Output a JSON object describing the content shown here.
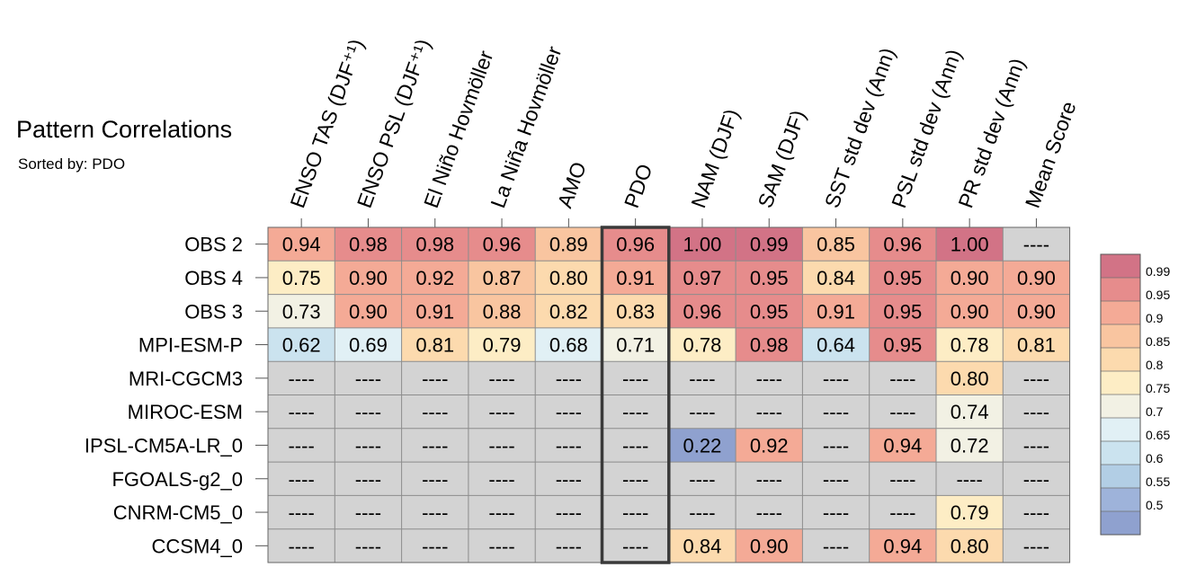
{
  "chart_data": {
    "type": "heatmap",
    "title": "Pattern Correlations",
    "subtitle": "Sorted by: PDO",
    "columns": [
      "ENSO TAS (DJF⁺¹)",
      "ENSO PSL (DJF⁺¹)",
      "El Niño Hovmöller",
      "La Niña Hovmöller",
      "AMO",
      "PDO",
      "NAM (DJF)",
      "SAM (DJF)",
      "SST std dev (Ann)",
      "PSL std dev (Ann)",
      "PR std dev (Ann)",
      "Mean Score"
    ],
    "highlighted_column": "PDO",
    "rows": [
      "OBS 2",
      "OBS 4",
      "OBS 3",
      "MPI-ESM-P",
      "MRI-CGCM3",
      "MIROC-ESM",
      "IPSL-CM5A-LR_0",
      "FGOALS-g2_0",
      "CNRM-CM5_0",
      "CCSM4_0"
    ],
    "values": [
      [
        0.94,
        0.98,
        0.98,
        0.96,
        0.89,
        0.96,
        1.0,
        0.99,
        0.85,
        0.96,
        1.0,
        null
      ],
      [
        0.75,
        0.9,
        0.92,
        0.87,
        0.8,
        0.91,
        0.97,
        0.95,
        0.84,
        0.95,
        0.9,
        0.9
      ],
      [
        0.73,
        0.9,
        0.91,
        0.88,
        0.82,
        0.83,
        0.96,
        0.95,
        0.91,
        0.95,
        0.9,
        0.9
      ],
      [
        0.62,
        0.69,
        0.81,
        0.79,
        0.68,
        0.71,
        0.78,
        0.98,
        0.64,
        0.95,
        0.78,
        0.81
      ],
      [
        null,
        null,
        null,
        null,
        null,
        null,
        null,
        null,
        null,
        null,
        0.8,
        null
      ],
      [
        null,
        null,
        null,
        null,
        null,
        null,
        null,
        null,
        null,
        null,
        0.74,
        null
      ],
      [
        null,
        null,
        null,
        null,
        null,
        null,
        0.22,
        0.92,
        null,
        0.94,
        0.72,
        null
      ],
      [
        null,
        null,
        null,
        null,
        null,
        null,
        null,
        null,
        null,
        null,
        null,
        null
      ],
      [
        null,
        null,
        null,
        null,
        null,
        null,
        null,
        null,
        null,
        null,
        0.79,
        null
      ],
      [
        null,
        null,
        null,
        null,
        null,
        null,
        0.84,
        0.9,
        null,
        0.94,
        0.8,
        null
      ]
    ],
    "missing_label": "----",
    "missing_color": "#d3d3d3",
    "colorbar": {
      "ticks": [
        "0.99",
        "0.95",
        "0.9",
        "0.85",
        "0.8",
        "0.75",
        "0.7",
        "0.65",
        "0.6",
        "0.55",
        "0.5"
      ],
      "colors": [
        "#d27386",
        "#e68c8c",
        "#f4aa96",
        "#f9c5a0",
        "#fcdaae",
        "#fdedc5",
        "#f2f1e4",
        "#e1f0f5",
        "#cbe3ef",
        "#b2cee5",
        "#9eb3da",
        "#8fa1cf"
      ]
    },
    "thresholds": [
      0.99,
      0.95,
      0.9,
      0.85,
      0.8,
      0.75,
      0.7,
      0.65,
      0.6,
      0.55,
      0.5
    ]
  }
}
